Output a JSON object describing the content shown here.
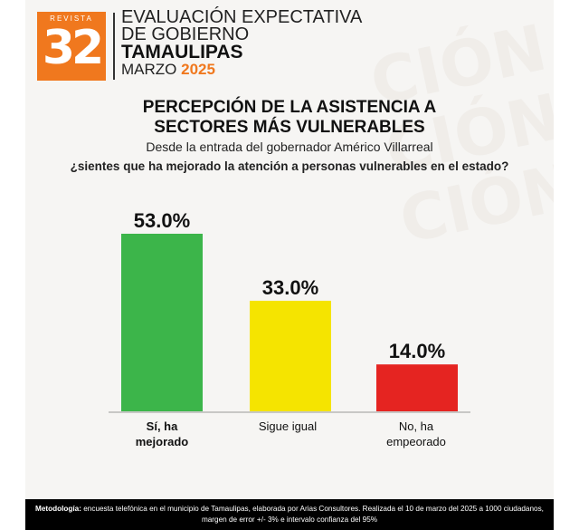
{
  "header": {
    "logo_top": "REVISTA",
    "logo_number": "32",
    "line1": "EVALUACIÓN EXPECTATIVA",
    "line2": "DE GOBIERNO",
    "line3": "TAMAULIPAS",
    "month": "MARZO",
    "year": "2025"
  },
  "title_line1": "PERCEPCIÓN DE LA ASISTENCIA A",
  "title_line2": "SECTORES MÁS VULNERABLES",
  "subtitle": "Desde la entrada del gobernador Américo Villarreal",
  "question": "¿sientes que ha mejorado la atención a personas vulnerables en el estado?",
  "chart_data": {
    "type": "bar",
    "categories": [
      "Sí, ha mejorado",
      "Sigue igual",
      "No, ha empeorado"
    ],
    "values": [
      53.0,
      33.0,
      14.0
    ],
    "value_labels": [
      "53.0%",
      "33.0%",
      "14.0%"
    ],
    "colors": [
      "#3cb54a",
      "#f5e400",
      "#e52421"
    ],
    "ylim": [
      0,
      53
    ],
    "grid": false
  },
  "categories": {
    "c1_line1": "Sí, ha",
    "c1_line2": "mejorado",
    "c2": "Sigue igual",
    "c3_line1": "No, ha",
    "c3_line2": "empeorado"
  },
  "footer": {
    "label": "Metodología:",
    "text": " encuesta telefónica en el municipio de Tamaulipas, elaborada por Arias Consultores. Realizada el 10 de marzo del 2025 a 1000 ciudadanos, margen de error +/- 3% e intervalo confianza del 95%"
  }
}
